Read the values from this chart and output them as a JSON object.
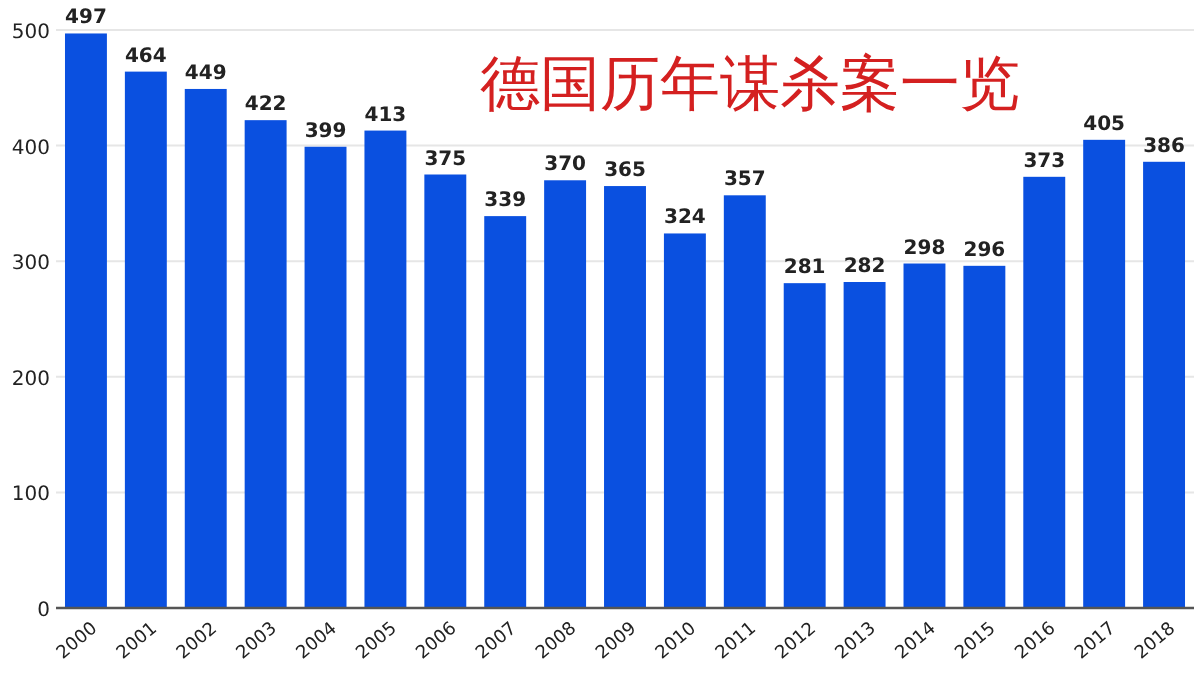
{
  "chart_data": {
    "type": "bar",
    "title": "德国历年谋杀案一览",
    "categories": [
      "2000",
      "2001",
      "2002",
      "2003",
      "2004",
      "2005",
      "2006",
      "2007",
      "2008",
      "2009",
      "2010",
      "2011",
      "2012",
      "2013",
      "2014",
      "2015",
      "2016",
      "2017",
      "2018"
    ],
    "values": [
      497,
      464,
      449,
      422,
      399,
      413,
      375,
      339,
      370,
      365,
      324,
      357,
      281,
      282,
      298,
      296,
      373,
      405,
      386
    ],
    "color": "#0a50e0",
    "ylim": [
      0,
      500
    ],
    "yticks": [
      0,
      100,
      200,
      300,
      400,
      500
    ],
    "grid": "y",
    "data_labels": true
  }
}
